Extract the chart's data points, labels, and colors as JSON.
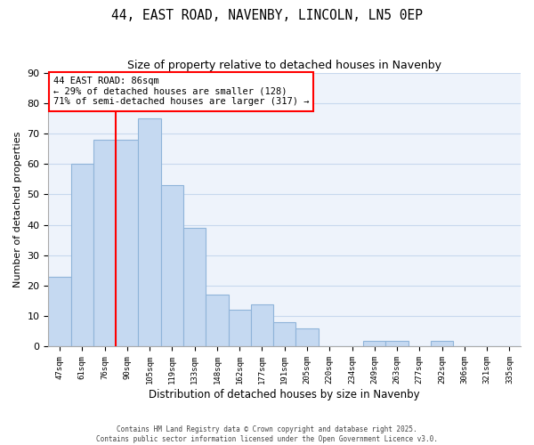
{
  "title": "44, EAST ROAD, NAVENBY, LINCOLN, LN5 0EP",
  "subtitle": "Size of property relative to detached houses in Navenby",
  "xlabel": "Distribution of detached houses by size in Navenby",
  "ylabel": "Number of detached properties",
  "categories": [
    "47sqm",
    "61sqm",
    "76sqm",
    "90sqm",
    "105sqm",
    "119sqm",
    "133sqm",
    "148sqm",
    "162sqm",
    "177sqm",
    "191sqm",
    "205sqm",
    "220sqm",
    "234sqm",
    "249sqm",
    "263sqm",
    "277sqm",
    "292sqm",
    "306sqm",
    "321sqm",
    "335sqm"
  ],
  "values": [
    23,
    60,
    68,
    68,
    75,
    53,
    39,
    17,
    12,
    14,
    8,
    6,
    0,
    0,
    2,
    2,
    0,
    2,
    0,
    0,
    0
  ],
  "bar_color": "#c5d9f1",
  "bar_edge_color": "#8fb4d9",
  "grid_color": "#c8d8ee",
  "background_color": "#eef3fb",
  "annotation_title": "44 EAST ROAD: 86sqm",
  "annotation_line1": "← 29% of detached houses are smaller (128)",
  "annotation_line2": "71% of semi-detached houses are larger (317) →",
  "red_line_index": 2.5,
  "ylim": [
    0,
    90
  ],
  "yticks": [
    0,
    10,
    20,
    30,
    40,
    50,
    60,
    70,
    80,
    90
  ],
  "footer1": "Contains HM Land Registry data © Crown copyright and database right 2025.",
  "footer2": "Contains public sector information licensed under the Open Government Licence v3.0."
}
